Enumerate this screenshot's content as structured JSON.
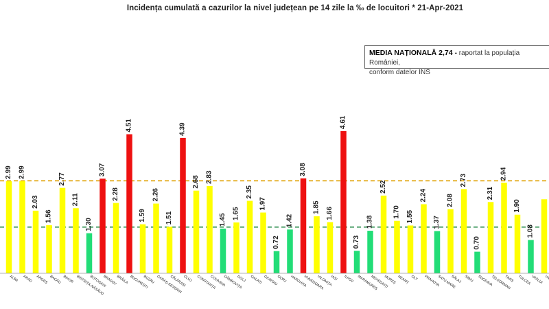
{
  "title": "Incidența cumulată  a cazurilor  la nivel județean  pe 14 zile la ‰ de locuitori  *   21-Apr-2021",
  "note": {
    "bold": "MEDIA NAȚIONALĂ 2,74 -",
    "text": " raportat la populația României,",
    "line2": "conform datelor INS"
  },
  "colors": {
    "red": "#ee1111",
    "yellow": "#ffff00",
    "green": "#22dd77",
    "ref_orange": "#e0a000",
    "ref_green": "#228844"
  },
  "chart_data": {
    "type": "bar",
    "categories": [
      "ALBA",
      "ARAD",
      "ARGEȘ",
      "BACĂU",
      "BIHOR",
      "BISTRIȚA-NĂSĂUD",
      "BOTOȘANI",
      "BRAȘOV",
      "BRĂILA",
      "BUCUREȘTI",
      "BUZĂU",
      "CARAȘ-SEVERIN",
      "CĂLĂRAȘI",
      "CLUJ",
      "CONSTANȚA",
      "COVASNA",
      "DÂMBOVIȚA",
      "DOLJ",
      "GALAȚI",
      "GIURGIU",
      "GORJ",
      "HARGHITA",
      "HUNEDOARA",
      "IALOMIȚA",
      "IAȘI",
      "ILFOV",
      "MARAMUREȘ",
      "MEHEDINȚI",
      "MUREȘ",
      "NEAMȚ",
      "OLT",
      "PRAHOVA",
      "SATU MARE",
      "SĂLAJ",
      "SIBIU",
      "SUCEAVA",
      "TELEORMAN",
      "TIMIȘ",
      "TULCEA",
      "VASLUI",
      "VÂLCEA"
    ],
    "values": [
      2.99,
      2.99,
      2.03,
      1.56,
      2.77,
      2.11,
      1.3,
      3.07,
      2.28,
      4.51,
      1.59,
      2.26,
      1.51,
      4.39,
      2.68,
      2.83,
      1.45,
      1.65,
      2.35,
      1.97,
      0.72,
      1.42,
      3.08,
      1.85,
      1.66,
      4.61,
      0.73,
      1.38,
      2.52,
      1.7,
      1.55,
      2.24,
      1.37,
      2.08,
      2.73,
      0.7,
      2.31,
      2.94,
      1.9,
      1.08,
      2.4
    ],
    "value_labels": [
      "2.99",
      "2.99",
      "2.03",
      "1.56",
      "2.77",
      "2.11",
      "1.30",
      "3.07",
      "2.28",
      "4.51",
      "1.59",
      "2.26",
      "1.51",
      "4.39",
      "2.68",
      "2.83",
      "1.45",
      "1.65",
      "2.35",
      "1.97",
      "0.72",
      "1.42",
      "3.08",
      "1.85",
      "1.66",
      "4.61",
      "0.73",
      "1.38",
      "2.52",
      "1.70",
      "1.55",
      "2.24",
      "1.37",
      "2.08",
      "2.73",
      "0.70",
      "2.31",
      "2.94",
      "1.90",
      "1.08",
      ""
    ],
    "color_class": [
      "yellow",
      "yellow",
      "yellow",
      "yellow",
      "yellow",
      "yellow",
      "green",
      "red",
      "yellow",
      "red",
      "yellow",
      "yellow",
      "yellow",
      "red",
      "yellow",
      "yellow",
      "green",
      "yellow",
      "yellow",
      "yellow",
      "green",
      "green",
      "red",
      "yellow",
      "yellow",
      "red",
      "green",
      "green",
      "yellow",
      "yellow",
      "yellow",
      "yellow",
      "green",
      "yellow",
      "yellow",
      "green",
      "yellow",
      "yellow",
      "yellow",
      "green",
      "yellow"
    ],
    "reference_lines": [
      3.0,
      1.5
    ],
    "ylim": [
      0,
      5.25
    ],
    "xlabel": "",
    "ylabel": "",
    "grid": false,
    "legend": "none"
  }
}
